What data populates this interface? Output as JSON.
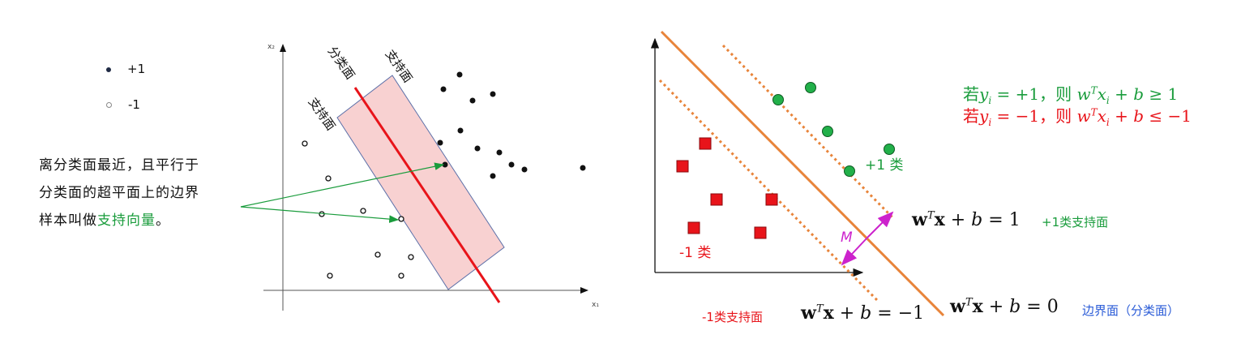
{
  "left": {
    "legend": [
      {
        "label": "+1",
        "color": "#1f2a44"
      },
      {
        "label": "-1",
        "color": "#888888"
      }
    ],
    "axis_x": "x₁",
    "axis_y": "x₂",
    "label_plane": "分类面",
    "label_support_upper": "支持面",
    "label_support_lower": "支持面",
    "note_line1": "离分类面最近，且平行于",
    "note_line2": "分类面的超平面上的边界",
    "note_line3_prefix": "样本叫做",
    "note_line3_highlight": "支持向量",
    "note_line3_suffix": "。"
  },
  "right": {
    "cond_pos_prefix": "若",
    "cond_pos_sep": "，则",
    "cond_neg_prefix": "若",
    "cond_neg_sep": "，则",
    "label_pos_class": "+1 类",
    "label_neg_class": "-1 类",
    "margin_label": "M",
    "tag_pos_support": "+1类支持面",
    "tag_boundary": "边界面（分类面）",
    "tag_neg_support": "-1类支持面",
    "eq_rhs_pos": "1",
    "eq_rhs_zero": "0",
    "eq_rhs_neg": "−1",
    "colors": {
      "green": "#1a9c3c",
      "red": "#e8141a",
      "orange": "#e8843a",
      "magenta": "#cc22cc",
      "blue": "#2a5bd7"
    }
  }
}
